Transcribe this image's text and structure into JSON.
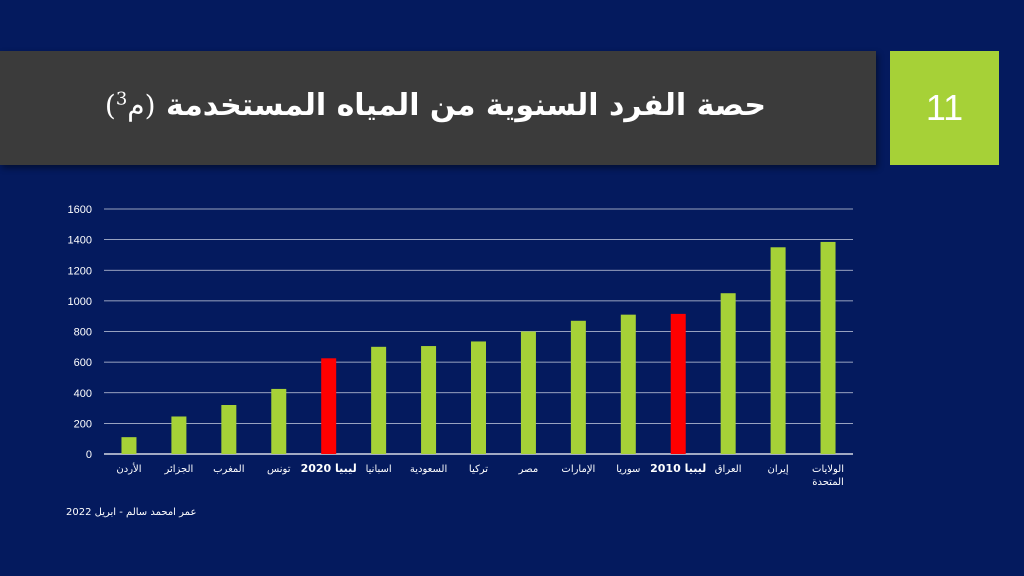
{
  "slide": {
    "title": "حصة الفرد السنوية من المياه المستخدمة",
    "unit_open": "(م",
    "unit_exp": "3",
    "unit_close": ")",
    "number": "11",
    "footer": "عمر امحمد سالم - ابريل 2022"
  },
  "colors": {
    "background": "#041a5e",
    "title_bar": "#3b3b3b",
    "accent_green": "#a6d137",
    "highlight_red": "#ff0000"
  },
  "chart_data": {
    "type": "bar",
    "categories": [
      "الأردن",
      "الجزائر",
      "المغرب",
      "تونس",
      "ليبيا 2020",
      "اسبانيا",
      "السعودية",
      "تركيا",
      "مصر",
      "الإمارات",
      "سوريا",
      "ليبيا 2010",
      "العراق",
      "إيران",
      "الولايات المتحدة"
    ],
    "category_lines": [
      [
        "الأردن"
      ],
      [
        "الجزائر"
      ],
      [
        "المغرب"
      ],
      [
        "تونس"
      ],
      [
        "ليبيا 2020"
      ],
      [
        "اسبانيا"
      ],
      [
        "السعودية"
      ],
      [
        "تركيا"
      ],
      [
        "مصر"
      ],
      [
        "الإمارات"
      ],
      [
        "سوريا"
      ],
      [
        "ليبيا 2010"
      ],
      [
        "العراق"
      ],
      [
        "إيران"
      ],
      [
        "الولايات",
        "المتحدة"
      ]
    ],
    "bold_categories": [
      "ليبيا 2020",
      "ليبيا 2010"
    ],
    "values": [
      110,
      245,
      320,
      425,
      625,
      700,
      705,
      735,
      800,
      870,
      910,
      915,
      1050,
      1350,
      1385
    ],
    "highlighted": [
      "ليبيا 2020",
      "ليبيا 2010"
    ],
    "yticks": [
      0,
      200,
      400,
      600,
      800,
      1000,
      1200,
      1400,
      1600
    ],
    "ylim": [
      0,
      1600
    ],
    "grid": true,
    "legend": "none"
  }
}
